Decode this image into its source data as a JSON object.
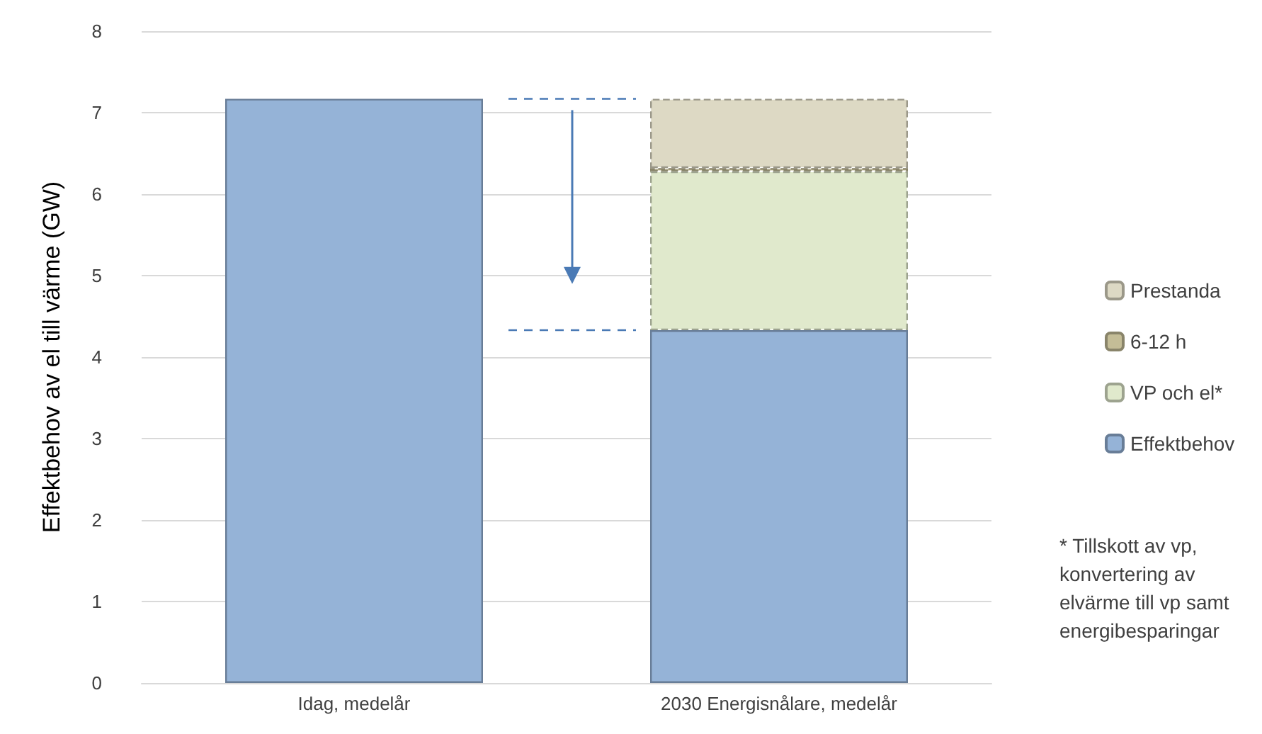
{
  "chart_data": {
    "type": "bar",
    "stacked": true,
    "ylabel": "Effektbehov av el till värme (GW)",
    "categories": [
      "Idag, medelår",
      "2030 Energisnålare, medelår"
    ],
    "series": [
      {
        "name": "Effektbehov",
        "color": "#95b3d7",
        "values": [
          7.17,
          4.33
        ]
      },
      {
        "name": "VP och el*",
        "color": "#e0e9cc",
        "line_style": "dashed",
        "values": [
          null,
          1.95
        ]
      },
      {
        "name": "6-12 h",
        "color": "#c4bd97",
        "line_style": "dashed",
        "values": [
          null,
          0.04
        ]
      },
      {
        "name": "Prestanda",
        "color": "#ddd9c4",
        "line_style": "dashed",
        "values": [
          null,
          0.85
        ]
      }
    ],
    "ylim": [
      0,
      8
    ],
    "yticks": [
      0,
      1,
      2,
      3,
      4,
      5,
      6,
      7,
      8
    ],
    "grid": "y",
    "legend": "right",
    "ref_lines": [
      {
        "axis": "y",
        "value": 7.17,
        "color": "#4a7ab5",
        "line_style": "dashed"
      },
      {
        "axis": "y",
        "value": 4.33,
        "color": "#4a7ab5",
        "line_style": "dashed"
      }
    ],
    "annotations": [
      "* Tillskott av vp, konvertering av elvärme till vp samt energibesparingar"
    ]
  }
}
